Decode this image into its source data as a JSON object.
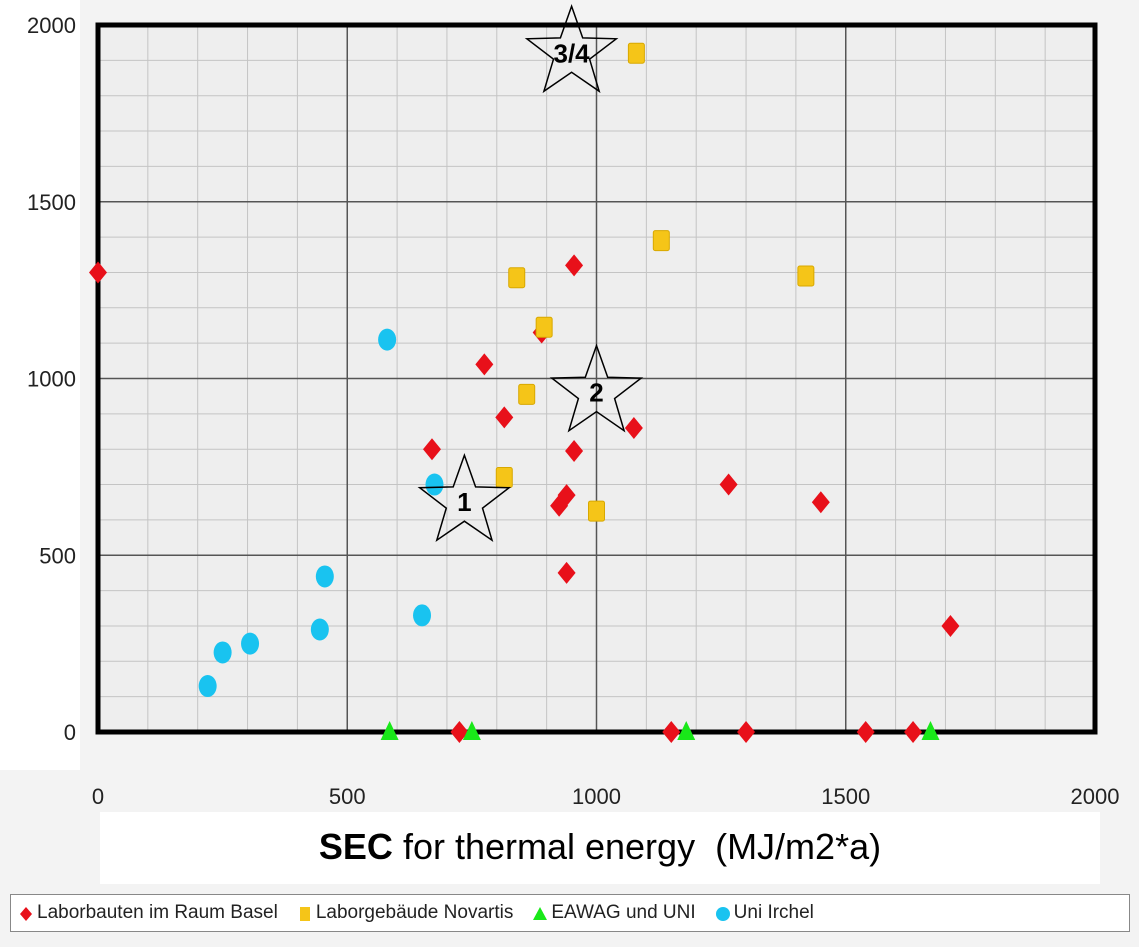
{
  "chart_data": {
    "type": "scatter",
    "xlabel_bold": "SEC",
    "xlabel_rest": " for thermal energy  (MJ/m2*a)",
    "xlim": [
      0,
      2000
    ],
    "ylim": [
      0,
      2000
    ],
    "xticks": [
      0,
      500,
      1000,
      1500,
      2000
    ],
    "yticks": [
      0,
      500,
      1000,
      1500,
      2000
    ],
    "grid": true,
    "legend_position": "bottom",
    "series": [
      {
        "name": "Laborbauten im Raum Basel",
        "marker": "diamond",
        "color": "#e8101a",
        "points": [
          [
            0,
            1300
          ],
          [
            670,
            800
          ],
          [
            775,
            1040
          ],
          [
            815,
            890
          ],
          [
            890,
            1130
          ],
          [
            955,
            1320
          ],
          [
            955,
            795
          ],
          [
            1075,
            860
          ],
          [
            925,
            640
          ],
          [
            940,
            670
          ],
          [
            940,
            450
          ],
          [
            1265,
            700
          ],
          [
            1450,
            650
          ],
          [
            1710,
            300
          ],
          [
            725,
            0
          ],
          [
            1150,
            0
          ],
          [
            1300,
            0
          ],
          [
            1540,
            0
          ],
          [
            1635,
            0
          ]
        ]
      },
      {
        "name": "Laborgebäude Novartis",
        "marker": "square",
        "color": "#f5c518",
        "points": [
          [
            1080,
            1920
          ],
          [
            1130,
            1390
          ],
          [
            840,
            1285
          ],
          [
            1420,
            1290
          ],
          [
            895,
            1145
          ],
          [
            860,
            955
          ],
          [
            815,
            720
          ],
          [
            1000,
            625
          ]
        ]
      },
      {
        "name": "EAWAG und UNI",
        "marker": "triangle",
        "color": "#19e819",
        "points": [
          [
            585,
            0
          ],
          [
            750,
            0
          ],
          [
            1180,
            0
          ],
          [
            1670,
            0
          ]
        ]
      },
      {
        "name": "Uni Irchel",
        "marker": "circle",
        "color": "#19c3f0",
        "points": [
          [
            580,
            1110
          ],
          [
            675,
            700
          ],
          [
            455,
            440
          ],
          [
            650,
            330
          ],
          [
            445,
            290
          ],
          [
            305,
            250
          ],
          [
            250,
            225
          ],
          [
            220,
            130
          ]
        ]
      }
    ],
    "annotations": [
      {
        "label": "3/4",
        "x": 950,
        "y": 1920
      },
      {
        "label": "2",
        "x": 1000,
        "y": 960
      },
      {
        "label": "1",
        "x": 735,
        "y": 650
      }
    ]
  }
}
